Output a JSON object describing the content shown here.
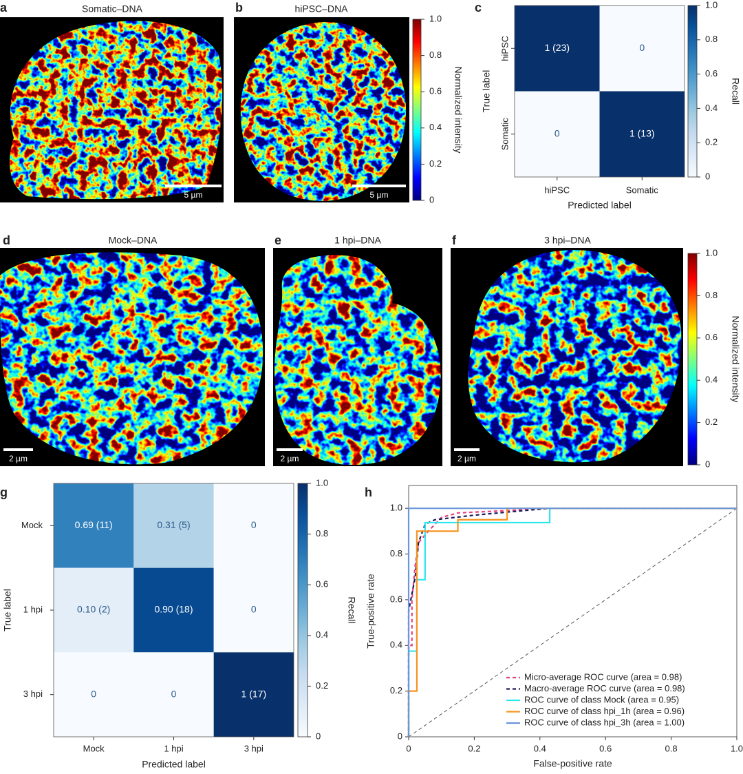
{
  "images": [
    {
      "panel": "a",
      "title": "Somatic–DNA",
      "scale_bar": "5 µm"
    },
    {
      "panel": "b",
      "title": "hiPSC–DNA",
      "scale_bar": "5 µm"
    },
    {
      "panel": "d",
      "title": "Mock–DNA",
      "scale_bar": "2 µm"
    },
    {
      "panel": "e",
      "title": "1 hpi–DNA",
      "scale_bar": "2 µm"
    },
    {
      "panel": "f",
      "title": "3 hpi–DNA",
      "scale_bar": "2 µm"
    }
  ],
  "chart_data": [
    {
      "type": "colorbar",
      "label": "Normalized intensity",
      "ylim": [
        0,
        1
      ],
      "yticks": [
        0,
        0.2,
        0.4,
        0.6,
        0.8,
        {
          "value": 1,
          "label": "1.0"
        }
      ],
      "colors": [
        "#00007f",
        "#0000ff",
        "#007fff",
        "#00ffff",
        "#7fff7f",
        "#ffff00",
        "#ff7f00",
        "#ff0000",
        "#7f0000"
      ]
    },
    {
      "type": "heatmap",
      "panel": "c",
      "x_label": "Predicted label",
      "y_label": "True label",
      "categories": [
        "hiPSC",
        "Somatic"
      ],
      "y_categories": [
        "hiPSC",
        "Somatic"
      ],
      "values": [
        [
          1,
          0
        ],
        [
          0,
          1
        ]
      ],
      "value_labels": [
        [
          "1 (23)",
          "0"
        ],
        [
          "0",
          "1 (13)"
        ]
      ],
      "colorbar_label": "Recall",
      "ylim": [
        0,
        1
      ],
      "yticks": [
        0,
        0.2,
        0.4,
        0.6,
        0.8,
        {
          "value": 1,
          "label": "1.0"
        }
      ],
      "colors": [
        "#f7fbff",
        "#deebf7",
        "#c6dbef",
        "#9ecae1",
        "#6baed6",
        "#4292c6",
        "#2171b5",
        "#08519c",
        "#08306b"
      ]
    },
    {
      "type": "colorbar",
      "label": "Normalized intensity",
      "ylim": [
        0,
        1
      ],
      "yticks": [
        0,
        0.2,
        0.4,
        0.6,
        0.8,
        {
          "value": 1,
          "label": "1.0"
        }
      ],
      "colors": [
        "#00007f",
        "#0000ff",
        "#007fff",
        "#00ffff",
        "#7fff7f",
        "#ffff00",
        "#ff7f00",
        "#ff0000",
        "#7f0000"
      ]
    },
    {
      "type": "heatmap",
      "panel": "g",
      "x_label": "Predicted label",
      "y_label": "True label",
      "categories": [
        "Mock",
        "1 hpi",
        "3 hpi"
      ],
      "y_categories": [
        "Mock",
        "1 hpi",
        "3 hpi"
      ],
      "values": [
        [
          0.69,
          0.31,
          0
        ],
        [
          0.1,
          0.9,
          0
        ],
        [
          0,
          0,
          1
        ]
      ],
      "value_labels": [
        [
          "0.69 (11)",
          "0.31 (5)",
          "0"
        ],
        [
          "0.10 (2)",
          "0.90 (18)",
          "0"
        ],
        [
          "0",
          "0",
          "1 (17)"
        ]
      ],
      "colorbar_label": "Recall",
      "ylim": [
        0,
        1
      ],
      "yticks": [
        0,
        0.2,
        0.4,
        0.6,
        0.8,
        {
          "value": 1,
          "label": "1.0"
        }
      ],
      "colors": [
        "#f7fbff",
        "#deebf7",
        "#c6dbef",
        "#9ecae1",
        "#6baed6",
        "#4292c6",
        "#2171b5",
        "#08519c",
        "#08306b"
      ]
    },
    {
      "type": "line",
      "panel": "h",
      "x_label": "False-positive rate",
      "y_label": "True-positive rate",
      "xlim": [
        0,
        1
      ],
      "ylim": [
        0,
        1.1
      ],
      "xticks": [
        0,
        0.2,
        0.4,
        0.6,
        0.8,
        {
          "value": 1,
          "label": "1.0"
        }
      ],
      "yticks": [
        0,
        0.2,
        0.4,
        0.6,
        0.8,
        {
          "value": 1,
          "label": "1.0"
        }
      ],
      "legend": "lower right",
      "series": [
        {
          "name": "Micro-average ROC curve (area = 0.98)",
          "color": "#e8407f",
          "dashed": true,
          "x": [
            0,
            0,
            0.01,
            0.01,
            0.02,
            0.03,
            0.06,
            0.1,
            0.15,
            0.3,
            0.43,
            1
          ],
          "values": [
            0,
            0.4,
            0.4,
            0.6,
            0.75,
            0.85,
            0.9,
            0.96,
            0.98,
            0.99,
            1,
            1
          ]
        },
        {
          "name": "Macro-average ROC curve (area = 0.98)",
          "color": "#1a1a5e",
          "dashed": true,
          "x": [
            0,
            0,
            0.02,
            0.03,
            0.05,
            0.08,
            0.2,
            0.35,
            0.43,
            1
          ],
          "values": [
            0,
            0.55,
            0.7,
            0.85,
            0.93,
            0.95,
            0.97,
            0.99,
            1,
            1
          ]
        },
        {
          "name": "ROC curve of class Mock (area = 0.95)",
          "color": "#2ee6f0",
          "dashed": false,
          "x": [
            0,
            0,
            0.025,
            0.025,
            0.05,
            0.05,
            0.43,
            0.43,
            1
          ],
          "values": [
            0,
            0.375,
            0.375,
            0.6875,
            0.6875,
            0.9375,
            0.9375,
            1,
            1
          ]
        },
        {
          "name": "ROC curve of class hpi_1h (area = 0.96)",
          "color": "#f7931e",
          "dashed": false,
          "x": [
            0,
            0,
            0.025,
            0.025,
            0.15,
            0.15,
            0.3,
            0.3,
            1
          ],
          "values": [
            0,
            0.2,
            0.2,
            0.9,
            0.9,
            0.95,
            0.95,
            1,
            1
          ]
        },
        {
          "name": "ROC curve of class hpi_3h (area = 1.00)",
          "color": "#6b96d8",
          "dashed": false,
          "x": [
            0,
            0,
            1
          ],
          "values": [
            0,
            1,
            1
          ]
        }
      ]
    }
  ]
}
